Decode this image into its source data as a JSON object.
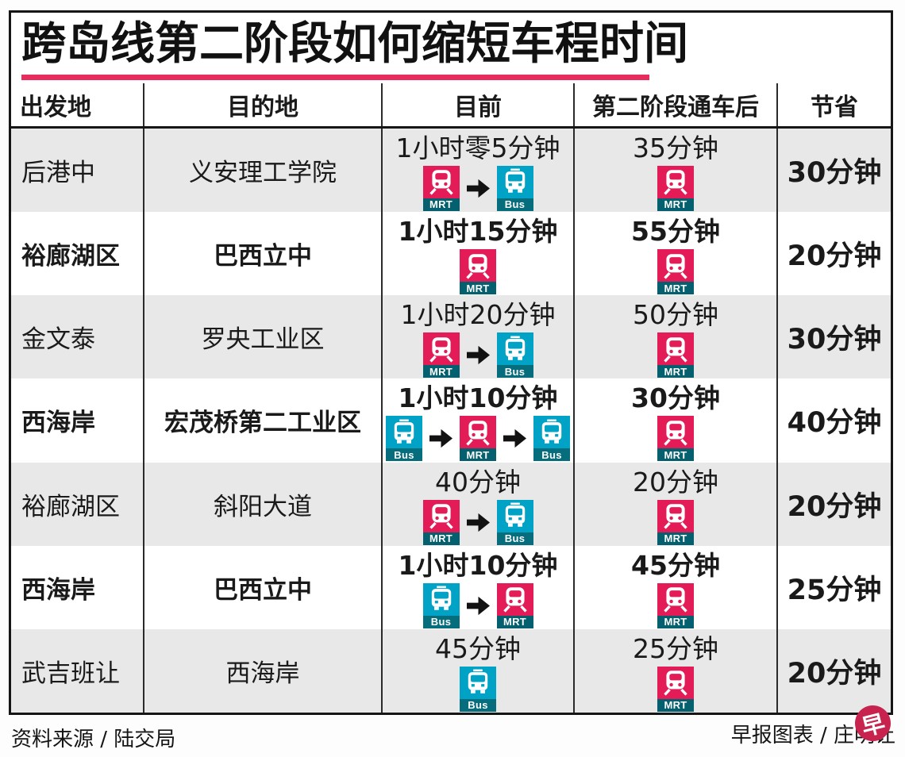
{
  "title": "跨岛线第二阶段如何缩短车程时间",
  "table": {
    "headers": [
      "出发地",
      "目的地",
      "目前",
      "第二阶段通车后",
      "节省"
    ],
    "rows": [
      {
        "origin": "后港中",
        "destination": "义安理工学院",
        "current": {
          "duration": "1小时零5分钟",
          "modes": [
            "MRT",
            "Bus"
          ]
        },
        "after": {
          "duration": "35分钟",
          "modes": [
            "MRT"
          ]
        },
        "savings": "30分钟"
      },
      {
        "origin": "裕廊湖区",
        "destination": "巴西立中",
        "current": {
          "duration": "1小时15分钟",
          "modes": [
            "MRT"
          ]
        },
        "after": {
          "duration": "55分钟",
          "modes": [
            "MRT"
          ]
        },
        "savings": "20分钟"
      },
      {
        "origin": "金文泰",
        "destination": "罗央工业区",
        "current": {
          "duration": "1小时20分钟",
          "modes": [
            "MRT",
            "Bus"
          ]
        },
        "after": {
          "duration": "50分钟",
          "modes": [
            "MRT"
          ]
        },
        "savings": "30分钟"
      },
      {
        "origin": "西海岸",
        "destination": "宏茂桥第二工业区",
        "current": {
          "duration": "1小时10分钟",
          "modes": [
            "Bus",
            "MRT",
            "Bus"
          ]
        },
        "after": {
          "duration": "30分钟",
          "modes": [
            "MRT"
          ]
        },
        "savings": "40分钟"
      },
      {
        "origin": "裕廊湖区",
        "destination": "斜阳大道",
        "current": {
          "duration": "40分钟",
          "modes": [
            "MRT",
            "Bus"
          ]
        },
        "after": {
          "duration": "20分钟",
          "modes": [
            "MRT"
          ]
        },
        "savings": "20分钟"
      },
      {
        "origin": "西海岸",
        "destination": "巴西立中",
        "current": {
          "duration": "1小时10分钟",
          "modes": [
            "Bus",
            "MRT"
          ]
        },
        "after": {
          "duration": "45分钟",
          "modes": [
            "MRT"
          ]
        },
        "savings": "25分钟"
      },
      {
        "origin": "武吉班让",
        "destination": "西海岸",
        "current": {
          "duration": "45分钟",
          "modes": [
            "Bus"
          ]
        },
        "after": {
          "duration": "25分钟",
          "modes": [
            "MRT"
          ]
        },
        "savings": "20分钟"
      }
    ]
  },
  "chart_data": {
    "type": "table",
    "title": "跨岛线第二阶段如何缩短车程时间",
    "columns": [
      "出发地",
      "目的地",
      "目前",
      "第二阶段通车后",
      "节省"
    ],
    "rows": [
      [
        "后港中",
        "义安理工学院",
        "1小时零5分钟 (MRT→Bus)",
        "35分钟 (MRT)",
        "30分钟"
      ],
      [
        "裕廊湖区",
        "巴西立中",
        "1小时15分钟 (MRT)",
        "55分钟 (MRT)",
        "20分钟"
      ],
      [
        "金文泰",
        "罗央工业区",
        "1小时20分钟 (MRT→Bus)",
        "50分钟 (MRT)",
        "30分钟"
      ],
      [
        "西海岸",
        "宏茂桥第二工业区",
        "1小时10分钟 (Bus→MRT→Bus)",
        "30分钟 (MRT)",
        "40分钟"
      ],
      [
        "裕廊湖区",
        "斜阳大道",
        "40分钟 (MRT→Bus)",
        "20分钟 (MRT)",
        "20分钟"
      ],
      [
        "西海岸",
        "巴西立中",
        "1小时10分钟 (Bus→MRT)",
        "45分钟 (MRT)",
        "25分钟"
      ],
      [
        "武吉班让",
        "西海岸",
        "45分钟 (Bus)",
        "25分钟 (MRT)",
        "20分钟"
      ]
    ],
    "current_minutes": [
      65,
      75,
      80,
      70,
      40,
      70,
      45
    ],
    "after_minutes": [
      35,
      55,
      50,
      30,
      20,
      45,
      25
    ],
    "savings_minutes": [
      30,
      20,
      30,
      40,
      20,
      25,
      20
    ]
  },
  "footer": {
    "source": "资料来源 / 陆交局",
    "credit": "早报图表 / 庄明让",
    "logo_glyph": "早"
  },
  "icon_labels": {
    "mrt": "MRT",
    "bus": "Bus"
  },
  "colors": {
    "accent_red": "#e62d5b",
    "mrt_pink": "#e31b56",
    "mrt_band": "#04606e",
    "bus_cyan": "#00a3c6",
    "bus_band": "#056d7c",
    "row_gray": "#e9e8e8",
    "logo_red": "#c8234e",
    "border_black": "#161616"
  }
}
